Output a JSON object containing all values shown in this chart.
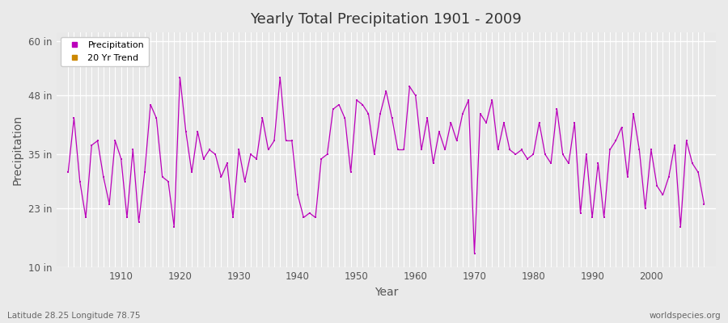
{
  "title": "Yearly Total Precipitation 1901 - 2009",
  "xlabel": "Year",
  "ylabel": "Precipitation",
  "subtitle_left": "Latitude 28.25 Longitude 78.75",
  "subtitle_right": "worldspecies.org",
  "legend_entries": [
    "Precipitation",
    "20 Yr Trend"
  ],
  "legend_colors": [
    "#bb00bb",
    "#cc8800"
  ],
  "background_color": "#eaeaea",
  "plot_bg_color": "#e8e8e8",
  "grid_color": "#ffffff",
  "line_color": "#bb00bb",
  "ylim": [
    10,
    62
  ],
  "yticks": [
    10,
    23,
    35,
    48,
    60
  ],
  "ytick_labels": [
    "10 in",
    "23 in",
    "35 in",
    "48 in",
    "60 in"
  ],
  "xlim": [
    1899,
    2011
  ],
  "xtick_years": [
    1910,
    1920,
    1930,
    1940,
    1950,
    1960,
    1970,
    1980,
    1990,
    2000
  ],
  "years": [
    1901,
    1902,
    1903,
    1904,
    1905,
    1906,
    1907,
    1908,
    1909,
    1910,
    1911,
    1912,
    1913,
    1914,
    1915,
    1916,
    1917,
    1918,
    1919,
    1920,
    1921,
    1922,
    1923,
    1924,
    1925,
    1926,
    1927,
    1928,
    1929,
    1930,
    1931,
    1932,
    1933,
    1934,
    1935,
    1936,
    1937,
    1938,
    1939,
    1940,
    1941,
    1942,
    1943,
    1944,
    1945,
    1946,
    1947,
    1948,
    1949,
    1950,
    1951,
    1952,
    1953,
    1954,
    1955,
    1956,
    1957,
    1958,
    1959,
    1960,
    1961,
    1962,
    1963,
    1964,
    1965,
    1966,
    1967,
    1968,
    1969,
    1970,
    1971,
    1972,
    1973,
    1974,
    1975,
    1976,
    1977,
    1978,
    1979,
    1980,
    1981,
    1982,
    1983,
    1984,
    1985,
    1986,
    1987,
    1988,
    1989,
    1990,
    1991,
    1992,
    1993,
    1994,
    1995,
    1996,
    1997,
    1998,
    1999,
    2000,
    2001,
    2002,
    2003,
    2004,
    2005,
    2006,
    2007,
    2008,
    2009
  ],
  "values": [
    31,
    43,
    29,
    21,
    37,
    38,
    30,
    24,
    38,
    34,
    21,
    36,
    20,
    31,
    46,
    43,
    30,
    29,
    19,
    52,
    40,
    31,
    40,
    34,
    36,
    35,
    30,
    33,
    21,
    36,
    29,
    35,
    34,
    43,
    36,
    38,
    52,
    38,
    38,
    26,
    21,
    22,
    21,
    34,
    35,
    45,
    46,
    43,
    31,
    47,
    46,
    44,
    35,
    44,
    49,
    43,
    36,
    36,
    50,
    48,
    36,
    43,
    33,
    40,
    36,
    42,
    38,
    44,
    47,
    13,
    44,
    42,
    47,
    36,
    42,
    36,
    35,
    36,
    34,
    35,
    42,
    35,
    33,
    45,
    35,
    33,
    42,
    22,
    35,
    21,
    33,
    21,
    36,
    38,
    41,
    30,
    44,
    36,
    23,
    36,
    28,
    26,
    30,
    37,
    19,
    38,
    33,
    31,
    24
  ]
}
